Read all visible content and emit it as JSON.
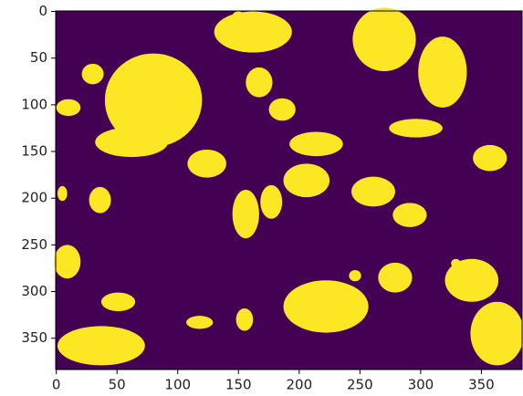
{
  "chart_data": {
    "type": "image",
    "colors": {
      "background": "#440154",
      "foreground": "#fde725"
    },
    "xlim": [
      -0.5,
      383.5
    ],
    "xticks": [
      0,
      50,
      100,
      150,
      200,
      250,
      300,
      350
    ],
    "ylim": [
      383.5,
      -0.5
    ],
    "yticks": [
      0,
      50,
      100,
      150,
      200,
      250,
      300,
      350
    ]
  }
}
